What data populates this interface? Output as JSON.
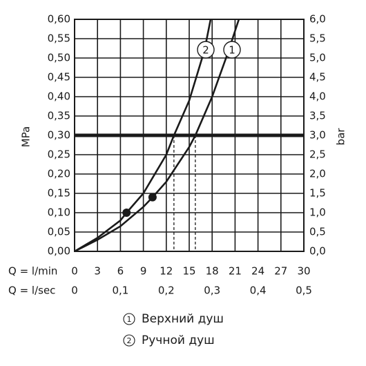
{
  "chart_data": {
    "type": "line",
    "ylabel": "MPa",
    "y2label": "bar",
    "xlabel": "Q = l/min",
    "x2label": "Q = l/sec",
    "xlim": [
      0,
      30
    ],
    "xticks": [
      0,
      3,
      6,
      9,
      12,
      15,
      18,
      21,
      24,
      27,
      30
    ],
    "x2lim": [
      0,
      0.5
    ],
    "x2ticks": [
      0,
      {
        "value": 0.1,
        "label": "0,1"
      },
      {
        "value": 0.2,
        "label": "0,2"
      },
      {
        "value": 0.3,
        "label": "0,3"
      },
      {
        "value": 0.4,
        "label": "0,4"
      },
      {
        "value": 0.5,
        "label": "0,5"
      }
    ],
    "ylim": [
      0,
      0.6
    ],
    "yticks": [
      {
        "value": 0,
        "label": "0,00"
      },
      {
        "value": 0.05,
        "label": "0,05"
      },
      {
        "value": 0.1,
        "label": "0,10"
      },
      {
        "value": 0.15,
        "label": "0,15"
      },
      {
        "value": 0.2,
        "label": "0,20"
      },
      {
        "value": 0.25,
        "label": "0,25"
      },
      {
        "value": 0.3,
        "label": "0,30"
      },
      {
        "value": 0.35,
        "label": "0,35"
      },
      {
        "value": 0.4,
        "label": "0,40"
      },
      {
        "value": 0.45,
        "label": "0,45"
      },
      {
        "value": 0.5,
        "label": "0,50"
      },
      {
        "value": 0.55,
        "label": "0,55"
      },
      {
        "value": 0.6,
        "label": "0,60"
      }
    ],
    "y2lim": [
      0,
      6
    ],
    "y2ticks": [
      {
        "value": 0,
        "label": "0,0"
      },
      {
        "value": 0.5,
        "label": "0,5"
      },
      {
        "value": 1,
        "label": "1,0"
      },
      {
        "value": 1.5,
        "label": "1,5"
      },
      {
        "value": 2,
        "label": "2,0"
      },
      {
        "value": 2.5,
        "label": "2,5"
      },
      {
        "value": 3,
        "label": "3,0"
      },
      {
        "value": 3.5,
        "label": "3,5"
      },
      {
        "value": 4,
        "label": "4,0"
      },
      {
        "value": 4.5,
        "label": "4,5"
      },
      {
        "value": 5,
        "label": "5,0"
      },
      {
        "value": 5.5,
        "label": "5,5"
      },
      {
        "value": 6,
        "label": "6,0"
      }
    ],
    "grid": true,
    "color": "#1a1a1a",
    "series": [
      {
        "name": "Верхний душ",
        "label": "1",
        "color": "#1a1a1a",
        "x": [
          0,
          3,
          6,
          9,
          10.2,
          12,
          15,
          15.8,
          18,
          20,
          21.5
        ],
        "values": [
          0,
          0.03,
          0.065,
          0.115,
          0.14,
          0.18,
          0.27,
          0.3,
          0.4,
          0.51,
          0.6
        ]
      },
      {
        "name": "Ручной душ",
        "label": "2",
        "color": "#1a1a1a",
        "x": [
          0,
          3,
          6,
          6.8,
          9,
          12,
          13,
          15,
          17,
          17.8
        ],
        "values": [
          0,
          0.035,
          0.08,
          0.1,
          0.15,
          0.25,
          0.3,
          0.39,
          0.52,
          0.6
        ]
      }
    ],
    "points": [
      {
        "x": 10.2,
        "y": 0.14
      },
      {
        "x": 6.8,
        "y": 0.1
      }
    ],
    "hline": 0.3,
    "vlines": [
      13,
      15.8
    ]
  }
}
